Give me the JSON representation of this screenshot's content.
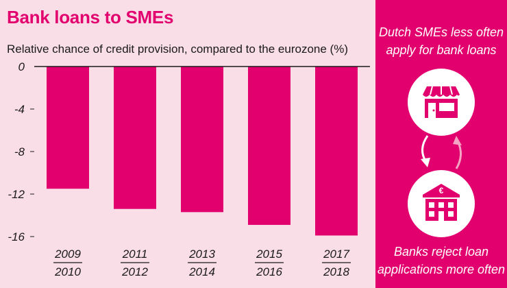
{
  "title": "Bank loans to SMEs",
  "subtitle": "Relative chance of credit provision, compared to the eurozone (%)",
  "colors": {
    "accent": "#e2006e",
    "background": "#f9dde7",
    "arrow_light": "#f5a3c4"
  },
  "sidebar": {
    "top_text_line1": "Dutch SMEs less often",
    "top_text_line2": "apply for bank loans",
    "bottom_text_line1": "Banks reject loan",
    "bottom_text_line2": "applications more often",
    "bank_symbol": "€"
  },
  "chart_data": {
    "type": "bar",
    "title": "Bank loans to SMEs",
    "ylabel": "Relative chance of credit provision, compared to the eurozone (%)",
    "xlabel": "",
    "categories": [
      {
        "top": "2009",
        "bottom": "2010"
      },
      {
        "top": "2011",
        "bottom": "2012"
      },
      {
        "top": "2013",
        "bottom": "2014"
      },
      {
        "top": "2015",
        "bottom": "2016"
      },
      {
        "top": "2017",
        "bottom": "2018"
      }
    ],
    "values": [
      -11.5,
      -13.4,
      -13.7,
      -14.9,
      -15.9
    ],
    "yticks": [
      0,
      -4,
      -8,
      -12,
      -16
    ],
    "ytick_labels": [
      "0",
      "-4",
      "-8",
      "-12",
      "-16"
    ],
    "ylim": [
      -16,
      0
    ],
    "grid": false,
    "legend": "none"
  }
}
